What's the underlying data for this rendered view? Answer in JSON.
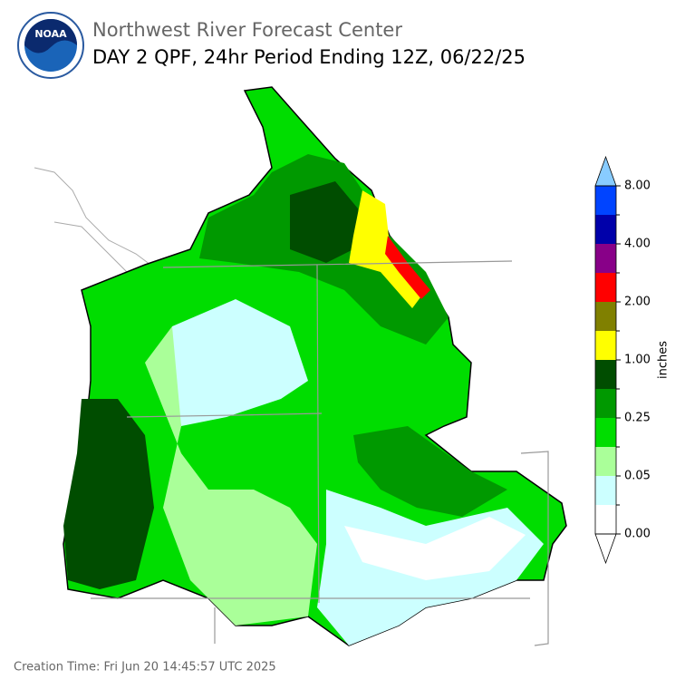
{
  "header": {
    "agency": "Northwest River Forecast Center",
    "title": "DAY 2 QPF, 24hr Period Ending 12Z, 06/22/25",
    "logo_text": "NOAA"
  },
  "colorbar": {
    "label": "inches",
    "colors": [
      "#ffffff",
      "#ccffff",
      "#aaff99",
      "#00dd00",
      "#009900",
      "#004d00",
      "#ffff00",
      "#808000",
      "#ff0000",
      "#880088",
      "#0000aa",
      "#0044ff"
    ],
    "extend_color": "#88ccff",
    "ticks": [
      {
        "value": 0,
        "label": "0.00"
      },
      {
        "value": 0.05,
        "label": "0.05"
      },
      {
        "value": 0.25,
        "label": "0.25"
      },
      {
        "value": 1,
        "label": "1.00"
      },
      {
        "value": 2,
        "label": "2.00"
      },
      {
        "value": 4,
        "label": "4.00"
      },
      {
        "value": 8,
        "label": "8.00"
      }
    ]
  },
  "footer": {
    "creation_time": "Creation Time: Fri Jun 20 14:45:57 UTC 2025"
  }
}
